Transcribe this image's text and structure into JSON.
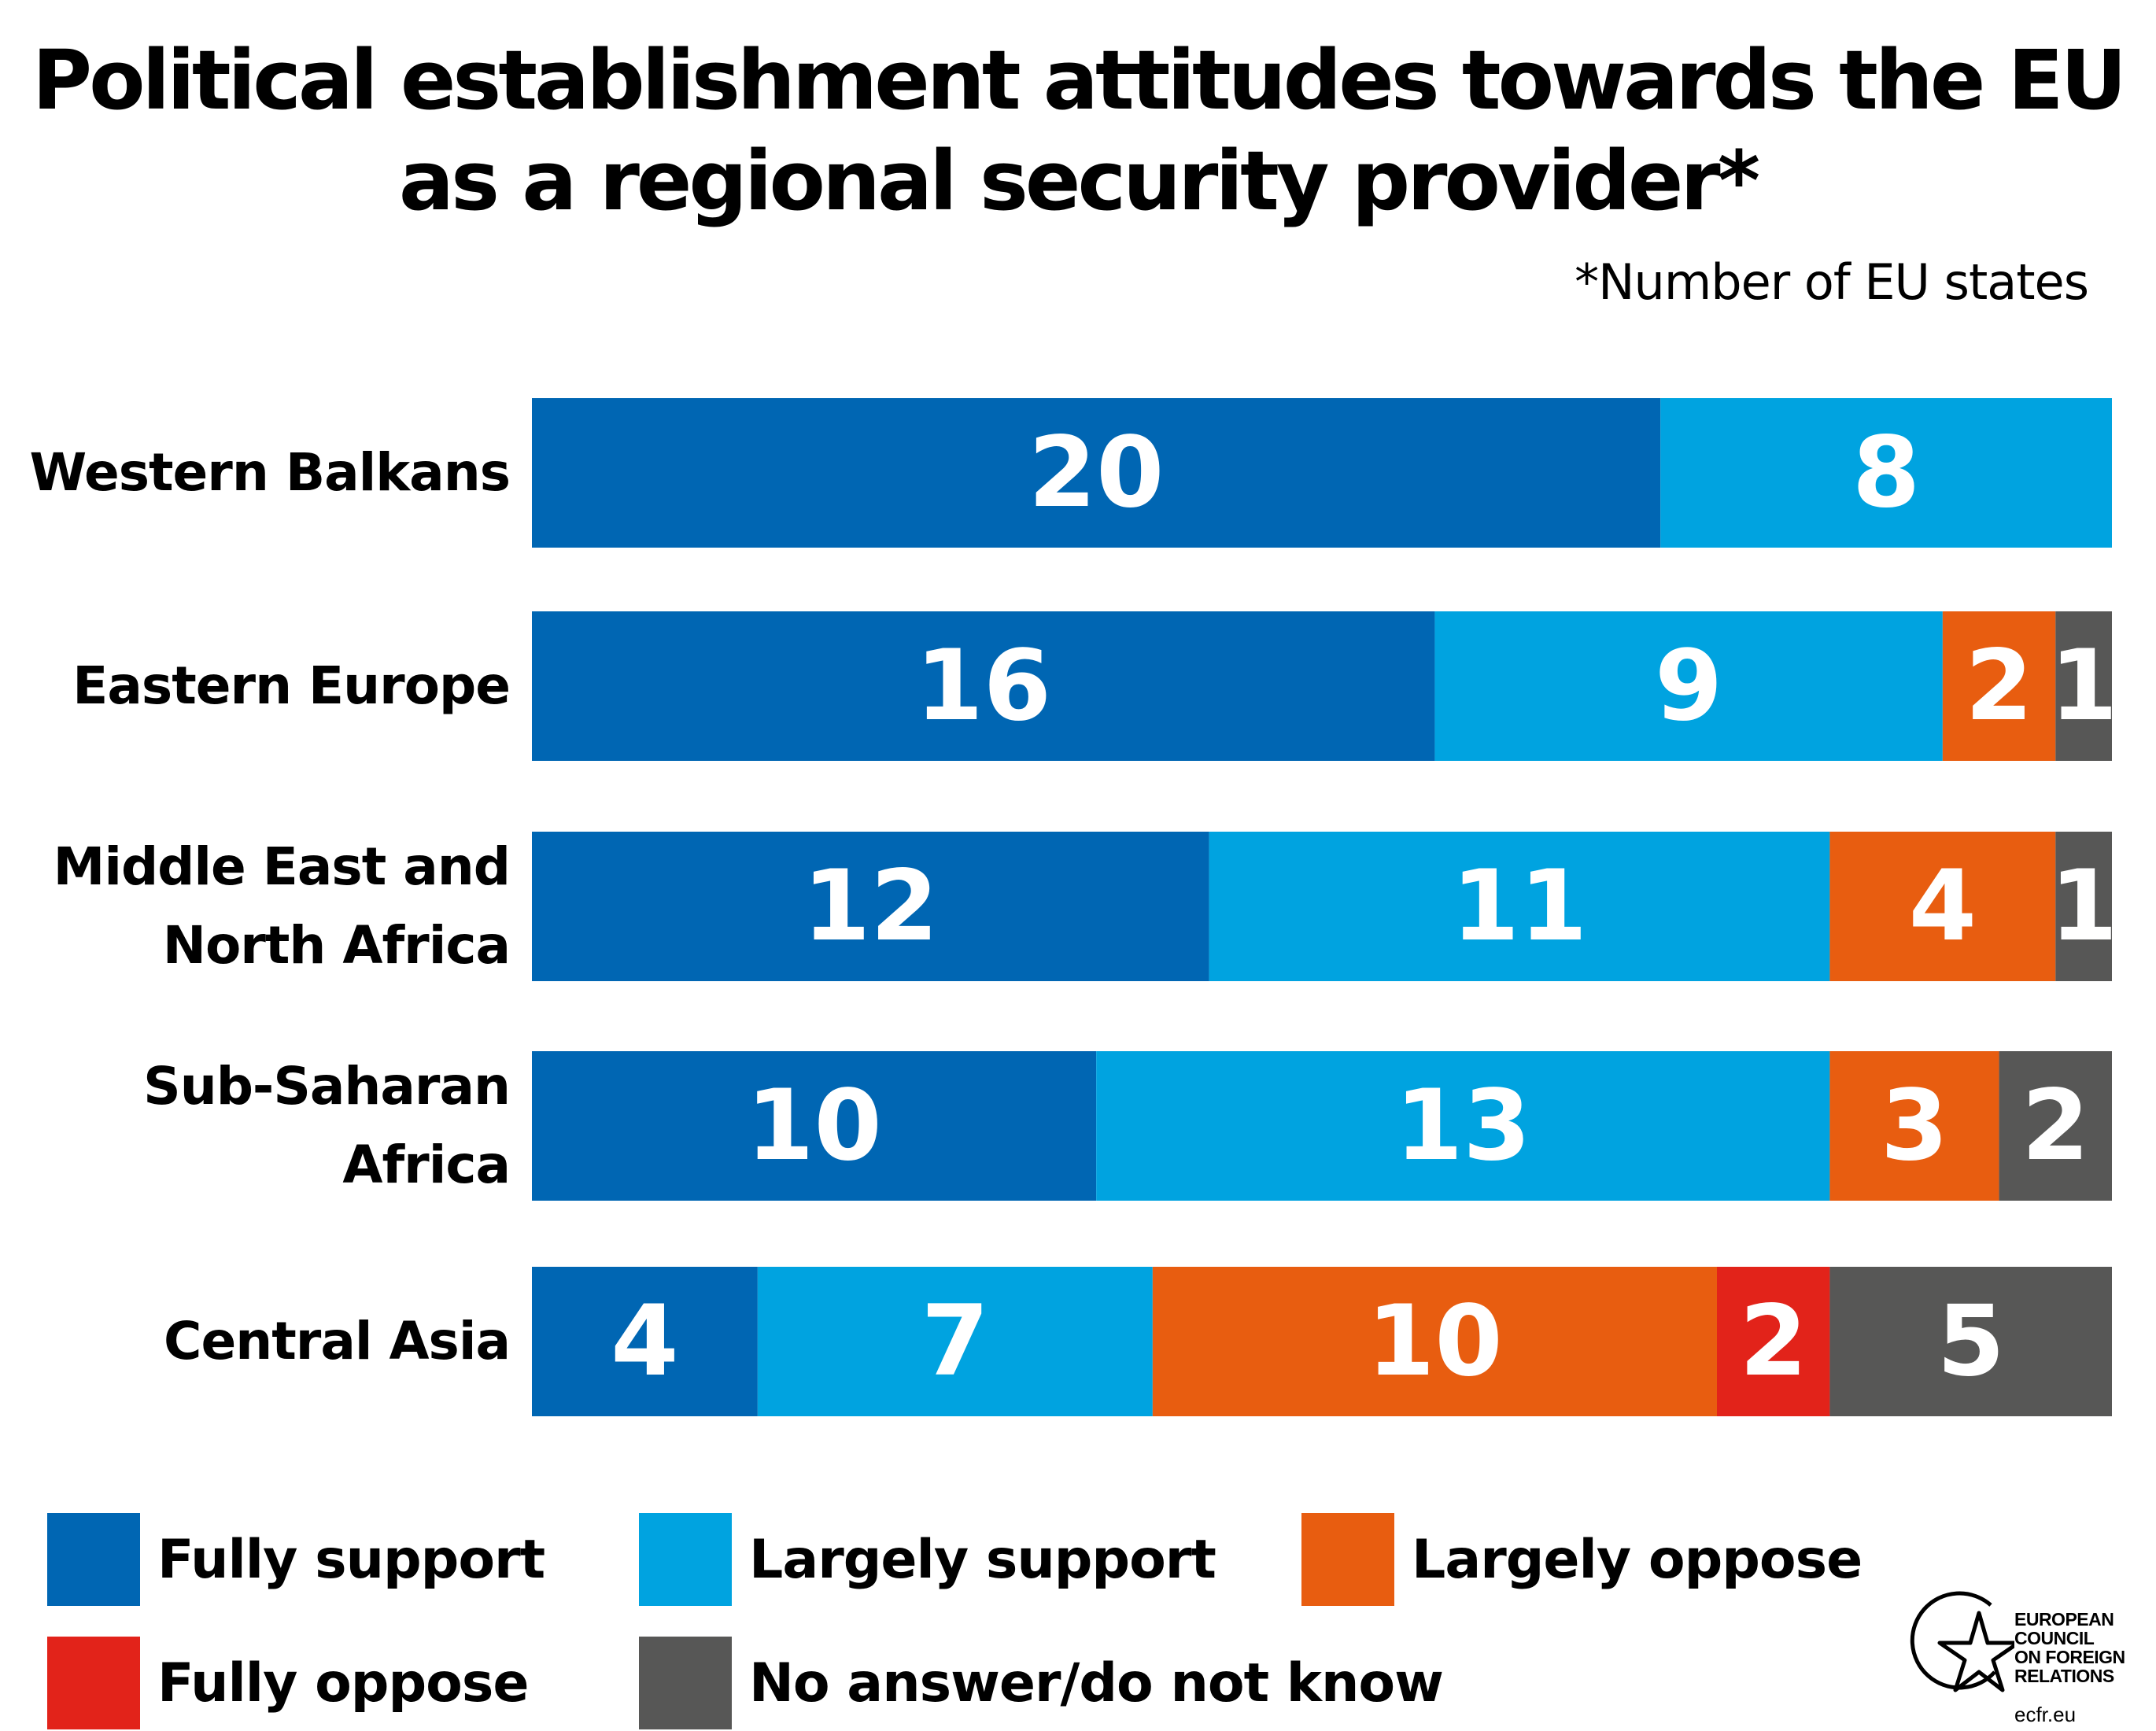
{
  "chart_data": {
    "type": "bar",
    "orientation": "horizontal",
    "stacked": true,
    "title": "Political establishment attitudes towards the EU as a regional security provider*",
    "title_lines": [
      "Political establishment attitudes towards the EU",
      "as a regional security provider*"
    ],
    "subtitle": "*Number of EU states",
    "categories": [
      {
        "label_lines": [
          "Western Balkans"
        ]
      },
      {
        "label_lines": [
          "Eastern Europe"
        ]
      },
      {
        "label_lines": [
          "Middle East and",
          "North Africa"
        ]
      },
      {
        "label_lines": [
          "Sub-Saharan",
          "Africa"
        ]
      },
      {
        "label_lines": [
          "Central Asia"
        ]
      }
    ],
    "series": [
      {
        "name": "Fully support",
        "color": "#0066b3",
        "values": [
          20,
          16,
          12,
          10,
          4
        ]
      },
      {
        "name": "Largely support",
        "color": "#00a3e0",
        "values": [
          8,
          9,
          11,
          13,
          7
        ]
      },
      {
        "name": "Largely oppose",
        "color": "#e85d10",
        "values": [
          0,
          2,
          4,
          3,
          10
        ]
      },
      {
        "name": "Fully oppose",
        "color": "#e2231a",
        "values": [
          0,
          0,
          0,
          0,
          2
        ]
      },
      {
        "name": "No answer/do not know",
        "color": "#575756",
        "values": [
          0,
          1,
          1,
          2,
          5
        ]
      }
    ],
    "xlim": [
      0,
      28
    ],
    "grid": false,
    "legend_position": "bottom"
  },
  "logo": {
    "lines": [
      "EUROPEAN",
      "COUNCIL",
      "ON FOREIGN",
      "RELATIONS"
    ],
    "url": "ecfr.eu"
  }
}
